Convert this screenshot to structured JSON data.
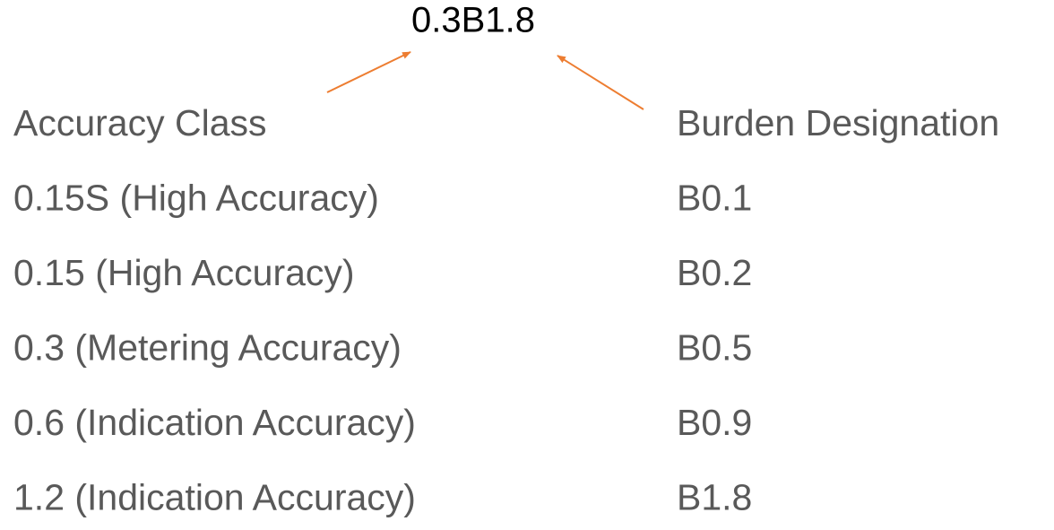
{
  "title": "0.3B1.8",
  "table": {
    "header": [
      "Accuracy Class",
      "Burden Designation"
    ],
    "rows": [
      [
        "0.15S (High Accuracy)",
        "B0.1"
      ],
      [
        "0.15 (High Accuracy)",
        "B0.2"
      ],
      [
        "0.3 (Metering Accuracy)",
        "B0.5"
      ],
      [
        "0.6 (Indication Accuracy)",
        "B0.9"
      ],
      [
        "1.2 (Indication Accuracy)",
        "B1.8"
      ]
    ]
  }
}
